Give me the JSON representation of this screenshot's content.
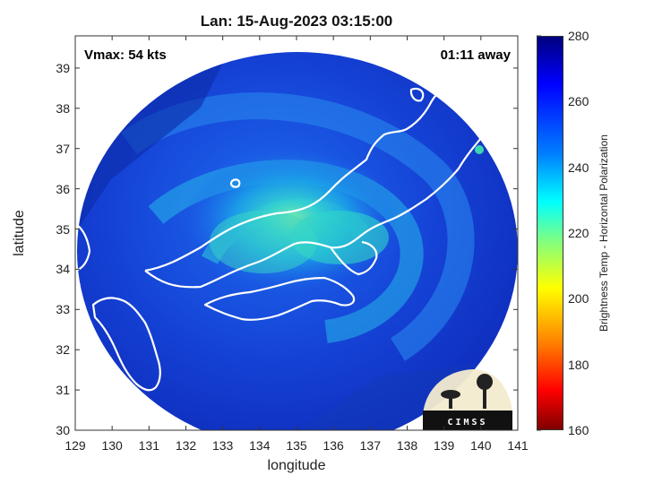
{
  "title": "Lan: 15-Aug-2023 03:15:00",
  "vmax_label": "Vmax: 54 kts",
  "away_label": "01:11 away",
  "axes": {
    "xlabel": "longitude",
    "ylabel": "latitude",
    "xlim": [
      129,
      141
    ],
    "ylim": [
      30,
      39.8
    ],
    "xticks": [
      "129",
      "130",
      "131",
      "132",
      "133",
      "134",
      "135",
      "136",
      "137",
      "138",
      "139",
      "140",
      "141"
    ],
    "yticks": [
      "30",
      "31",
      "32",
      "33",
      "34",
      "35",
      "36",
      "37",
      "38",
      "39"
    ]
  },
  "colorbar": {
    "label": "Brightness Temp - Horizontal Polarization",
    "range": [
      160,
      280
    ],
    "ticks": [
      "160",
      "180",
      "200",
      "220",
      "240",
      "260",
      "280"
    ],
    "colormap": "jet"
  },
  "storm": {
    "center_lon": 135.1,
    "center_lat": 35.4,
    "coverage_radius_deg_lon": 6.0,
    "coverage_radius_deg_lat": 5.2
  },
  "logo": {
    "text": "CIMSS"
  },
  "colors": {
    "background_cold": "#0b2fb8",
    "warm_core": "#33d6c0",
    "coastline": "#ffffff",
    "outside_swath": "#ffffff"
  }
}
